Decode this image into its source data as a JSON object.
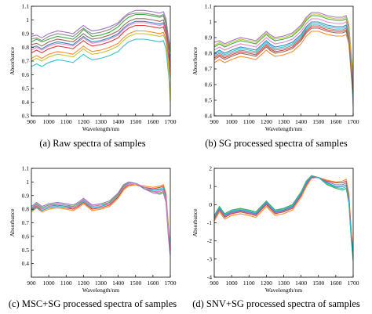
{
  "chart_data": [
    {
      "type": "line",
      "xlabel": "Wavelength/nm",
      "ylabel": "Absorbance",
      "caption": "(a) Raw spectra of samples",
      "xlim": [
        900,
        1700
      ],
      "ylim": [
        0.3,
        1.1
      ],
      "xticks": [
        900,
        1000,
        1100,
        1200,
        1300,
        1400,
        1500,
        1600,
        1700
      ],
      "yticks": [
        0.3,
        0.4,
        0.5,
        0.6,
        0.7,
        0.8,
        0.9,
        1,
        1.1
      ],
      "grid": false,
      "x": [
        900,
        930,
        960,
        1000,
        1050,
        1100,
        1140,
        1170,
        1200,
        1220,
        1250,
        1300,
        1350,
        1400,
        1430,
        1460,
        1500,
        1550,
        1600,
        1640,
        1660,
        1675,
        1690,
        1700
      ],
      "series": [
        {
          "values": [
            0.8,
            0.81,
            0.79,
            0.82,
            0.84,
            0.83,
            0.82,
            0.85,
            0.88,
            0.86,
            0.84,
            0.85,
            0.87,
            0.9,
            0.94,
            0.97,
            0.99,
            0.99,
            0.98,
            0.97,
            0.98,
            0.92,
            0.78,
            0.72
          ]
        },
        {
          "values": [
            0.76,
            0.78,
            0.76,
            0.79,
            0.81,
            0.8,
            0.79,
            0.82,
            0.85,
            0.83,
            0.81,
            0.82,
            0.84,
            0.87,
            0.91,
            0.94,
            0.96,
            0.96,
            0.95,
            0.94,
            0.95,
            0.89,
            0.74,
            0.66
          ]
        },
        {
          "values": [
            0.84,
            0.86,
            0.84,
            0.86,
            0.88,
            0.87,
            0.86,
            0.89,
            0.93,
            0.91,
            0.88,
            0.89,
            0.91,
            0.95,
            0.99,
            1.02,
            1.04,
            1.04,
            1.03,
            1.02,
            1.03,
            0.97,
            0.82,
            0.76
          ]
        },
        {
          "values": [
            0.72,
            0.74,
            0.72,
            0.75,
            0.77,
            0.76,
            0.75,
            0.78,
            0.81,
            0.79,
            0.77,
            0.78,
            0.8,
            0.83,
            0.87,
            0.9,
            0.92,
            0.92,
            0.91,
            0.9,
            0.91,
            0.86,
            0.68,
            0.58
          ]
        },
        {
          "values": [
            0.88,
            0.89,
            0.87,
            0.9,
            0.92,
            0.91,
            0.9,
            0.93,
            0.96,
            0.94,
            0.92,
            0.93,
            0.95,
            0.98,
            1.02,
            1.05,
            1.07,
            1.07,
            1.06,
            1.05,
            1.06,
            1.01,
            0.86,
            0.8
          ]
        },
        {
          "values": [
            0.66,
            0.68,
            0.66,
            0.69,
            0.71,
            0.7,
            0.69,
            0.72,
            0.75,
            0.73,
            0.71,
            0.72,
            0.74,
            0.77,
            0.81,
            0.84,
            0.86,
            0.86,
            0.85,
            0.84,
            0.85,
            0.79,
            0.6,
            0.45
          ]
        },
        {
          "values": [
            0.78,
            0.8,
            0.78,
            0.81,
            0.83,
            0.82,
            0.81,
            0.84,
            0.87,
            0.85,
            0.83,
            0.84,
            0.86,
            0.89,
            0.93,
            0.96,
            0.98,
            0.98,
            0.97,
            0.96,
            0.97,
            0.91,
            0.76,
            0.7
          ]
        },
        {
          "values": [
            0.82,
            0.83,
            0.81,
            0.84,
            0.86,
            0.85,
            0.84,
            0.87,
            0.9,
            0.88,
            0.86,
            0.87,
            0.89,
            0.92,
            0.96,
            0.99,
            1.01,
            1.01,
            1.0,
            0.99,
            1.0,
            0.94,
            0.8,
            0.62
          ]
        },
        {
          "values": [
            0.7,
            0.72,
            0.7,
            0.73,
            0.75,
            0.74,
            0.73,
            0.76,
            0.79,
            0.77,
            0.75,
            0.76,
            0.78,
            0.81,
            0.85,
            0.88,
            0.9,
            0.9,
            0.89,
            0.88,
            0.89,
            0.84,
            0.64,
            0.4
          ]
        },
        {
          "values": [
            0.86,
            0.87,
            0.85,
            0.88,
            0.9,
            0.89,
            0.88,
            0.91,
            0.94,
            0.92,
            0.9,
            0.91,
            0.93,
            0.97,
            1.01,
            1.04,
            1.05,
            1.05,
            1.04,
            1.03,
            1.04,
            0.99,
            0.84,
            0.78
          ]
        }
      ]
    },
    {
      "type": "line",
      "xlabel": "Wavelength/nm",
      "ylabel": "Absorbance",
      "caption": "(b) SG processed spectra of samples",
      "xlim": [
        900,
        1700
      ],
      "ylim": [
        0.4,
        1.1
      ],
      "xticks": [
        900,
        1000,
        1100,
        1200,
        1300,
        1400,
        1500,
        1600,
        1700
      ],
      "yticks": [
        0.4,
        0.5,
        0.6,
        0.7,
        0.8,
        0.9,
        1,
        1.1
      ],
      "grid": false,
      "x": [
        900,
        930,
        960,
        1000,
        1050,
        1100,
        1140,
        1170,
        1200,
        1220,
        1250,
        1300,
        1350,
        1400,
        1430,
        1460,
        1500,
        1550,
        1600,
        1640,
        1660,
        1675,
        1690,
        1700
      ],
      "series": [
        {
          "values": [
            0.8,
            0.82,
            0.8,
            0.82,
            0.84,
            0.83,
            0.82,
            0.85,
            0.88,
            0.86,
            0.84,
            0.85,
            0.87,
            0.92,
            0.97,
            1.0,
            1.0,
            0.98,
            0.97,
            0.97,
            0.98,
            0.92,
            0.72,
            0.6
          ]
        },
        {
          "values": [
            0.77,
            0.79,
            0.77,
            0.79,
            0.81,
            0.8,
            0.79,
            0.82,
            0.85,
            0.83,
            0.81,
            0.82,
            0.84,
            0.89,
            0.94,
            0.97,
            0.97,
            0.95,
            0.94,
            0.94,
            0.95,
            0.89,
            0.68,
            0.56
          ]
        },
        {
          "values": [
            0.84,
            0.86,
            0.84,
            0.86,
            0.88,
            0.87,
            0.86,
            0.89,
            0.92,
            0.9,
            0.88,
            0.89,
            0.91,
            0.96,
            1.01,
            1.04,
            1.04,
            1.02,
            1.01,
            1.01,
            1.02,
            0.96,
            0.76,
            0.64
          ]
        },
        {
          "values": [
            0.74,
            0.76,
            0.74,
            0.76,
            0.78,
            0.77,
            0.76,
            0.79,
            0.82,
            0.8,
            0.78,
            0.79,
            0.81,
            0.86,
            0.91,
            0.94,
            0.94,
            0.92,
            0.91,
            0.91,
            0.92,
            0.86,
            0.64,
            0.5
          ]
        },
        {
          "values": [
            0.87,
            0.88,
            0.86,
            0.88,
            0.9,
            0.89,
            0.88,
            0.91,
            0.94,
            0.92,
            0.9,
            0.91,
            0.93,
            0.98,
            1.03,
            1.06,
            1.06,
            1.04,
            1.03,
            1.03,
            1.04,
            0.98,
            0.78,
            0.66
          ]
        },
        {
          "values": [
            0.79,
            0.81,
            0.79,
            0.81,
            0.83,
            0.82,
            0.81,
            0.84,
            0.87,
            0.85,
            0.83,
            0.84,
            0.86,
            0.91,
            0.96,
            0.99,
            0.99,
            0.97,
            0.96,
            0.96,
            0.97,
            0.91,
            0.7,
            0.46
          ]
        },
        {
          "values": [
            0.82,
            0.84,
            0.82,
            0.84,
            0.86,
            0.85,
            0.84,
            0.87,
            0.9,
            0.88,
            0.86,
            0.87,
            0.89,
            0.94,
            0.99,
            1.02,
            1.02,
            1.0,
            0.99,
            0.99,
            1.0,
            0.94,
            0.74,
            0.62
          ]
        },
        {
          "values": [
            0.76,
            0.78,
            0.76,
            0.78,
            0.8,
            0.79,
            0.78,
            0.81,
            0.84,
            0.82,
            0.8,
            0.81,
            0.83,
            0.88,
            0.93,
            0.96,
            0.96,
            0.94,
            0.93,
            0.93,
            0.94,
            0.88,
            0.66,
            0.54
          ]
        },
        {
          "values": [
            0.85,
            0.87,
            0.85,
            0.87,
            0.89,
            0.88,
            0.87,
            0.9,
            0.93,
            0.91,
            0.89,
            0.9,
            0.92,
            0.97,
            1.02,
            1.05,
            1.05,
            1.03,
            1.02,
            1.02,
            1.03,
            0.97,
            0.77,
            0.65
          ]
        },
        {
          "values": [
            0.78,
            0.8,
            0.78,
            0.8,
            0.82,
            0.81,
            0.8,
            0.83,
            0.86,
            0.84,
            0.82,
            0.83,
            0.85,
            0.9,
            0.95,
            0.98,
            0.98,
            0.96,
            0.95,
            0.95,
            0.96,
            0.9,
            0.69,
            0.58
          ]
        }
      ]
    },
    {
      "type": "line",
      "xlabel": "Wavelength/nm",
      "ylabel": "Absorbance",
      "caption": "(c) MSC+SG processed spectra of samples",
      "xlim": [
        900,
        1700
      ],
      "ylim": [
        0.3,
        1.1
      ],
      "xticks": [
        900,
        1000,
        1100,
        1200,
        1300,
        1400,
        1500,
        1600,
        1700
      ],
      "yticks": [
        0.4,
        0.5,
        0.6,
        0.7,
        0.8,
        0.9,
        1,
        1.1
      ],
      "grid": false,
      "x": [
        900,
        930,
        960,
        1000,
        1050,
        1100,
        1140,
        1170,
        1200,
        1220,
        1250,
        1300,
        1350,
        1400,
        1430,
        1460,
        1500,
        1550,
        1600,
        1640,
        1660,
        1675,
        1690,
        1700
      ],
      "series": [
        {
          "values": [
            0.8,
            0.83,
            0.8,
            0.82,
            0.83,
            0.82,
            0.81,
            0.83,
            0.86,
            0.84,
            0.81,
            0.82,
            0.84,
            0.9,
            0.96,
            0.99,
            0.99,
            0.96,
            0.94,
            0.94,
            0.95,
            0.88,
            0.62,
            0.52
          ]
        },
        {
          "values": [
            0.79,
            0.82,
            0.79,
            0.81,
            0.82,
            0.81,
            0.8,
            0.82,
            0.85,
            0.83,
            0.8,
            0.81,
            0.83,
            0.89,
            0.95,
            0.98,
            0.98,
            0.96,
            0.95,
            0.96,
            0.97,
            0.9,
            0.64,
            0.48
          ]
        },
        {
          "values": [
            0.81,
            0.84,
            0.81,
            0.83,
            0.84,
            0.83,
            0.82,
            0.84,
            0.87,
            0.85,
            0.82,
            0.83,
            0.85,
            0.91,
            0.97,
            1.0,
            0.99,
            0.95,
            0.93,
            0.92,
            0.93,
            0.86,
            0.6,
            0.55
          ]
        },
        {
          "values": [
            0.78,
            0.81,
            0.78,
            0.8,
            0.81,
            0.8,
            0.79,
            0.81,
            0.84,
            0.82,
            0.79,
            0.8,
            0.82,
            0.88,
            0.94,
            0.97,
            0.98,
            0.97,
            0.96,
            0.97,
            0.98,
            0.92,
            0.66,
            0.5
          ]
        },
        {
          "values": [
            0.82,
            0.85,
            0.82,
            0.84,
            0.85,
            0.84,
            0.83,
            0.85,
            0.88,
            0.86,
            0.83,
            0.84,
            0.86,
            0.92,
            0.98,
            1.0,
            0.99,
            0.95,
            0.92,
            0.91,
            0.92,
            0.85,
            0.58,
            0.46
          ]
        },
        {
          "values": [
            0.79,
            0.81,
            0.79,
            0.81,
            0.82,
            0.81,
            0.81,
            0.83,
            0.86,
            0.84,
            0.81,
            0.82,
            0.84,
            0.9,
            0.96,
            0.99,
            0.99,
            0.96,
            0.94,
            0.95,
            0.96,
            0.89,
            0.63,
            0.54
          ]
        },
        {
          "values": [
            0.81,
            0.83,
            0.8,
            0.82,
            0.84,
            0.83,
            0.81,
            0.83,
            0.87,
            0.85,
            0.82,
            0.83,
            0.84,
            0.9,
            0.96,
            0.99,
            0.99,
            0.96,
            0.93,
            0.93,
            0.94,
            0.87,
            0.61,
            0.5
          ]
        }
      ]
    },
    {
      "type": "line",
      "xlabel": "Wavelength/nm",
      "ylabel": "Absorbance",
      "caption": "(d) SNV+SG processed spectra of samples",
      "xlim": [
        900,
        1700
      ],
      "ylim": [
        -4,
        2
      ],
      "xticks": [
        900,
        1000,
        1100,
        1200,
        1300,
        1400,
        1500,
        1600,
        1700
      ],
      "yticks": [
        -4,
        -3,
        -2,
        -1,
        0,
        1,
        2
      ],
      "grid": false,
      "x": [
        900,
        930,
        960,
        1000,
        1050,
        1100,
        1140,
        1170,
        1200,
        1220,
        1250,
        1300,
        1350,
        1400,
        1430,
        1460,
        1500,
        1550,
        1600,
        1640,
        1660,
        1675,
        1690,
        1700
      ],
      "series": [
        {
          "values": [
            -0.7,
            -0.2,
            -0.6,
            -0.4,
            -0.3,
            -0.4,
            -0.5,
            -0.2,
            0.1,
            -0.1,
            -0.4,
            -0.3,
            -0.1,
            0.6,
            1.2,
            1.55,
            1.5,
            1.2,
            1.0,
            1.0,
            1.1,
            0.3,
            -1.9,
            -2.9
          ]
        },
        {
          "values": [
            -0.8,
            -0.3,
            -0.7,
            -0.5,
            -0.4,
            -0.5,
            -0.6,
            -0.3,
            0.0,
            -0.2,
            -0.5,
            -0.4,
            -0.2,
            0.5,
            1.1,
            1.5,
            1.5,
            1.3,
            1.2,
            1.2,
            1.3,
            0.5,
            -1.7,
            -2.6
          ]
        },
        {
          "values": [
            -0.6,
            -0.1,
            -0.5,
            -0.3,
            -0.2,
            -0.3,
            -0.4,
            -0.1,
            0.2,
            0.0,
            -0.3,
            -0.2,
            0.0,
            0.7,
            1.3,
            1.6,
            1.5,
            1.1,
            0.9,
            0.8,
            0.9,
            0.1,
            -2.1,
            -3.1
          ]
        },
        {
          "values": [
            -0.9,
            -0.4,
            -0.8,
            -0.6,
            -0.5,
            -0.6,
            -0.7,
            -0.4,
            -0.1,
            -0.3,
            -0.6,
            -0.5,
            -0.3,
            0.4,
            1.0,
            1.45,
            1.5,
            1.35,
            1.25,
            1.3,
            1.4,
            0.6,
            -1.6,
            -2.4
          ]
        },
        {
          "values": [
            -0.75,
            -0.25,
            -0.65,
            -0.45,
            -0.35,
            -0.45,
            -0.55,
            -0.25,
            0.05,
            -0.15,
            -0.45,
            -0.35,
            -0.15,
            0.55,
            1.15,
            1.52,
            1.5,
            1.25,
            1.1,
            1.1,
            1.2,
            0.4,
            -1.8,
            -2.75
          ]
        },
        {
          "values": [
            -0.65,
            -0.15,
            -0.55,
            -0.35,
            -0.25,
            -0.35,
            -0.45,
            -0.15,
            0.15,
            -0.05,
            -0.35,
            -0.25,
            -0.05,
            0.65,
            1.25,
            1.58,
            1.5,
            1.15,
            0.95,
            0.9,
            1.0,
            0.2,
            -2.0,
            -3.0
          ]
        }
      ]
    }
  ]
}
